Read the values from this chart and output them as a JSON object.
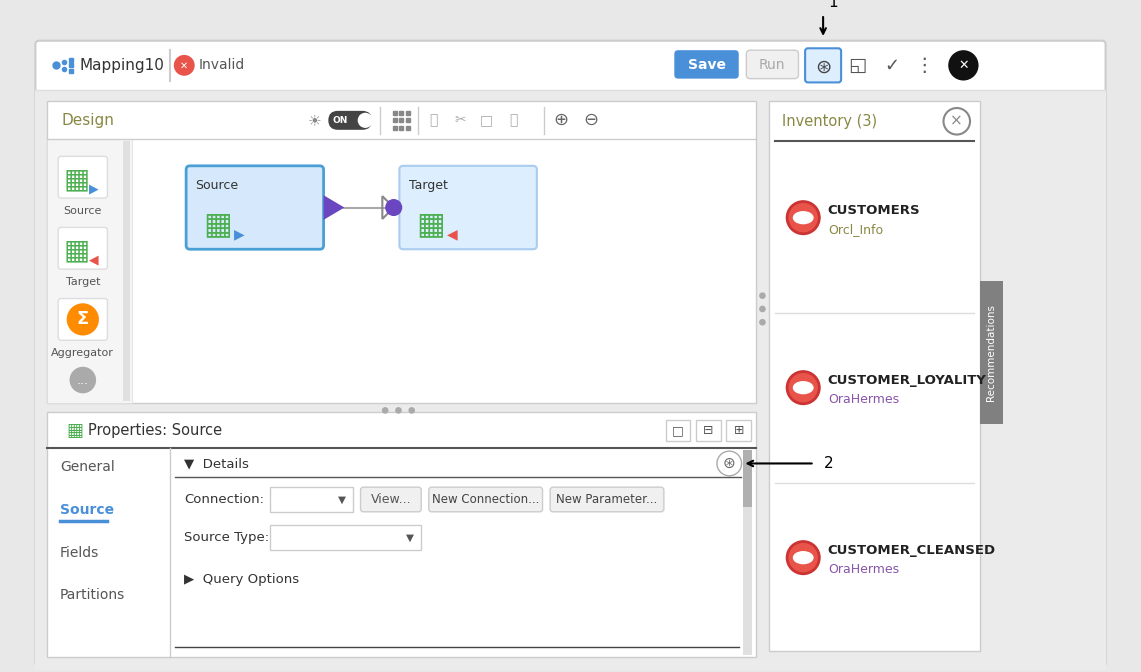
{
  "title": "Mapping10",
  "status": "Invalid",
  "bg_color": "#ffffff",
  "outer_bg": "#ebebeb",
  "inventory_items": [
    {
      "name": "CUSTOMERS",
      "sub": "Orcl_Info"
    },
    {
      "name": "CUSTOMER_LOYALITY",
      "sub": "OraHermes"
    },
    {
      "name": "CUSTOMER_CLEANSED",
      "sub": "OraHermes"
    }
  ],
  "tabs": [
    "General",
    "Source",
    "Fields",
    "Partitions"
  ],
  "active_tab": "Source",
  "save_btn_color": "#4a90d9",
  "sidebar_items": [
    "Source",
    "Target",
    "Aggregator"
  ]
}
